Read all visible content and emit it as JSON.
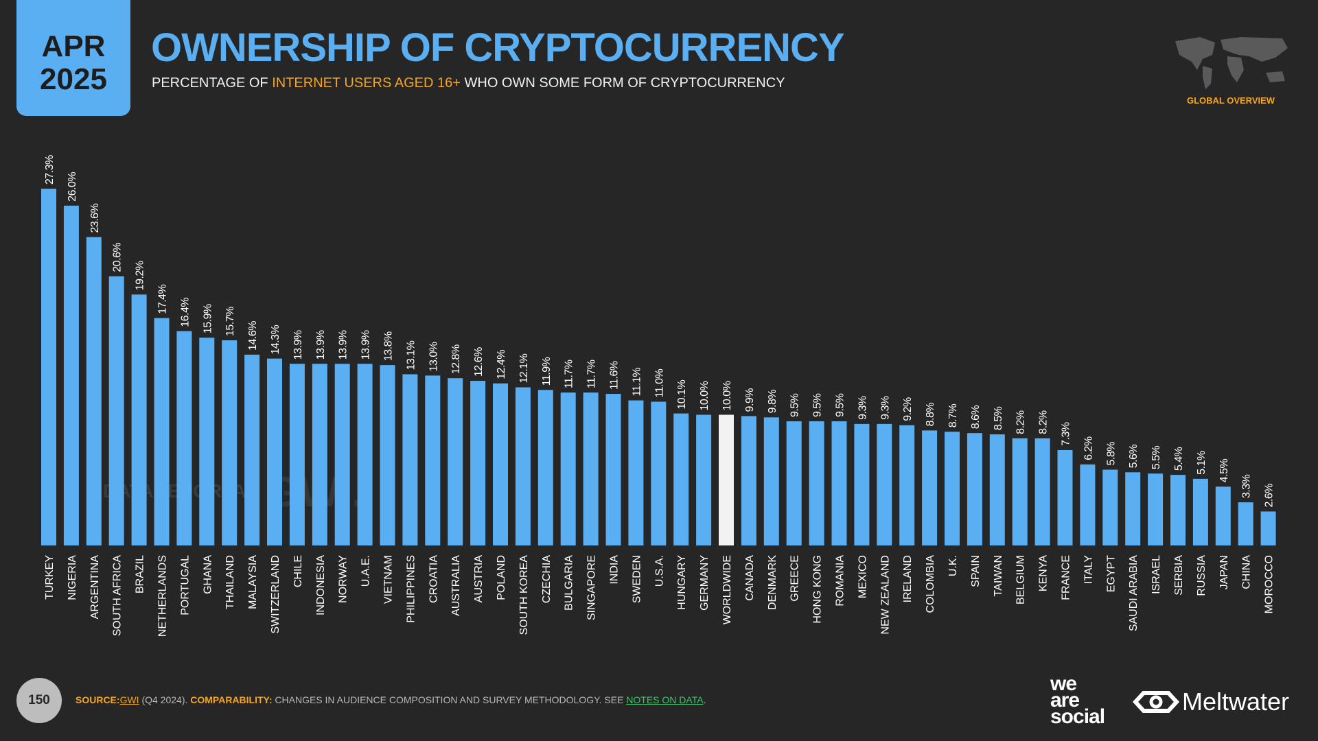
{
  "header": {
    "date_month": "APR",
    "date_year": "2025",
    "subtitle_parts": [
      "PERCENTAGE OF ",
      "INTERNET USERS AGED 16+",
      " WHO OWN SOME FORM OF CRYPTOCURRENCY"
    ],
    "section": "GLOBAL OVERVIEW"
  },
  "chart_data": {
    "type": "bar",
    "title": "OWNERSHIP OF CRYPTOCURRENCY",
    "categories": [
      "TURKEY",
      "NIGERIA",
      "ARGENTINA",
      "SOUTH AFRICA",
      "BRAZIL",
      "NETHERLANDS",
      "PORTUGAL",
      "GHANA",
      "THAILAND",
      "MALAYSIA",
      "SWITZERLAND",
      "CHILE",
      "INDONESIA",
      "NORWAY",
      "U.A.E.",
      "VIETNAM",
      "PHILIPPINES",
      "CROATIA",
      "AUSTRALIA",
      "AUSTRIA",
      "POLAND",
      "SOUTH KOREA",
      "CZECHIA",
      "BULGARIA",
      "SINGAPORE",
      "INDIA",
      "SWEDEN",
      "U.S.A.",
      "HUNGARY",
      "GERMANY",
      "WORLDWIDE",
      "CANADA",
      "DENMARK",
      "GREECE",
      "HONG KONG",
      "ROMANIA",
      "MEXICO",
      "NEW ZEALAND",
      "IRELAND",
      "COLOMBIA",
      "U.K.",
      "SPAIN",
      "TAIWAN",
      "BELGIUM",
      "KENYA",
      "FRANCE",
      "ITALY",
      "EGYPT",
      "SAUDI ARABIA",
      "ISRAEL",
      "SERBIA",
      "RUSSIA",
      "JAPAN",
      "CHINA",
      "MOROCCO"
    ],
    "values": [
      27.3,
      26.0,
      23.6,
      20.6,
      19.2,
      17.4,
      16.4,
      15.9,
      15.7,
      14.6,
      14.3,
      13.9,
      13.9,
      13.9,
      13.9,
      13.8,
      13.1,
      13.0,
      12.8,
      12.6,
      12.4,
      12.1,
      11.9,
      11.7,
      11.7,
      11.6,
      11.1,
      11.0,
      10.1,
      10.0,
      10.0,
      9.9,
      9.8,
      9.5,
      9.5,
      9.5,
      9.3,
      9.3,
      9.2,
      8.8,
      8.7,
      8.6,
      8.5,
      8.2,
      8.2,
      7.3,
      6.2,
      5.8,
      5.6,
      5.5,
      5.4,
      5.1,
      4.5,
      3.3,
      2.6
    ],
    "value_labels": [
      "27.3%",
      "26.0%",
      "23.6%",
      "20.6%",
      "19.2%",
      "17.4%",
      "16.4%",
      "15.9%",
      "15.7%",
      "14.6%",
      "14.3%",
      "13.9%",
      "13.9%",
      "13.9%",
      "13.9%",
      "13.8%",
      "13.1%",
      "13.0%",
      "12.8%",
      "12.6%",
      "12.4%",
      "12.1%",
      "11.9%",
      "11.7%",
      "11.7%",
      "11.6%",
      "11.1%",
      "11.0%",
      "10.1%",
      "10.0%",
      "10.0%",
      "9.9%",
      "9.8%",
      "9.5%",
      "9.5%",
      "9.5%",
      "9.3%",
      "9.3%",
      "9.2%",
      "8.8%",
      "8.7%",
      "8.6%",
      "8.5%",
      "8.2%",
      "8.2%",
      "7.3%",
      "6.2%",
      "5.8%",
      "5.6%",
      "5.5%",
      "5.4%",
      "5.1%",
      "4.5%",
      "3.3%",
      "2.6%"
    ],
    "colors": [
      "#5aaef2",
      "#5aaef2",
      "#5aaef2",
      "#5aaef2",
      "#5aaef2",
      "#5aaef2",
      "#5aaef2",
      "#5aaef2",
      "#5aaef2",
      "#5aaef2",
      "#5aaef2",
      "#5aaef2",
      "#5aaef2",
      "#5aaef2",
      "#5aaef2",
      "#5aaef2",
      "#5aaef2",
      "#5aaef2",
      "#5aaef2",
      "#5aaef2",
      "#5aaef2",
      "#5aaef2",
      "#5aaef2",
      "#5aaef2",
      "#5aaef2",
      "#5aaef2",
      "#5aaef2",
      "#5aaef2",
      "#5aaef2",
      "#5aaef2",
      "#f2f2f2",
      "#5aaef2",
      "#5aaef2",
      "#5aaef2",
      "#5aaef2",
      "#5aaef2",
      "#5aaef2",
      "#5aaef2",
      "#5aaef2",
      "#5aaef2",
      "#5aaef2",
      "#5aaef2",
      "#5aaef2",
      "#5aaef2",
      "#5aaef2",
      "#5aaef2",
      "#5aaef2",
      "#5aaef2",
      "#5aaef2",
      "#5aaef2",
      "#5aaef2",
      "#5aaef2",
      "#5aaef2",
      "#5aaef2",
      "#5aaef2"
    ],
    "watermarks": [
      "DATAREPORTAL",
      "GWI."
    ]
  },
  "footer": {
    "page": "150",
    "source_parts": [
      "SOURCE:",
      "GWI",
      " (Q4 2024). ",
      "COMPARABILITY:",
      " CHANGES IN AUDIENCE COMPOSITION AND SURVEY METHODOLOGY. SEE ",
      "NOTES ON DATA",
      "."
    ],
    "logo_lines": [
      "we",
      "are",
      "social"
    ],
    "logo2": "Meltwater"
  }
}
